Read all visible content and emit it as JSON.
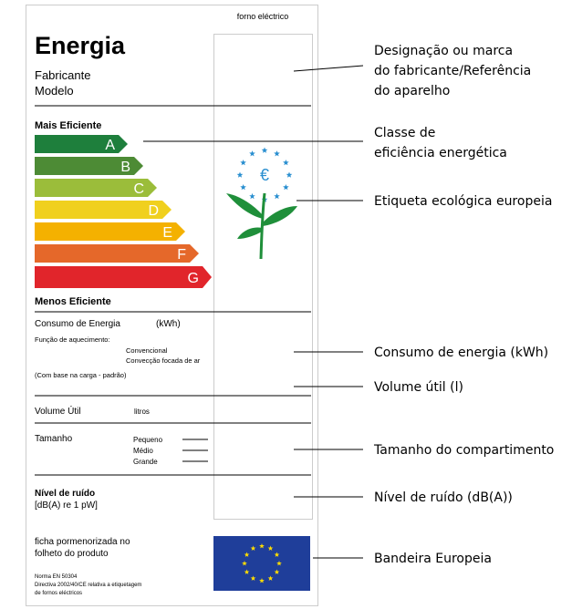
{
  "label": {
    "product_type": "forno eléctrico",
    "title": "Energia",
    "manufacturer": "Fabricante",
    "model": "Modelo",
    "most_efficient": "Mais Eficiente",
    "classes": [
      "A",
      "B",
      "C",
      "D",
      "E",
      "F",
      "G"
    ],
    "least_efficient": "Menos Eficiente",
    "consumption": {
      "title": "Consumo de Energia",
      "unit": "(kWh)",
      "heating_function": "Função de aquecimento:",
      "conventional": "Convencional",
      "forced_air": "Convecção focada de ar",
      "basis": "(Com base na carga - padrão)"
    },
    "volume": {
      "title": "Volume Útil",
      "unit": "litros"
    },
    "size": {
      "title": "Tamanho",
      "options": [
        "Pequeno",
        "Médio",
        "Grande"
      ]
    },
    "noise": {
      "title": "Nível de ruído",
      "unit": "[dB(A) re 1 pW]"
    },
    "details": [
      "ficha pormenorizada no",
      "folheto do produto"
    ],
    "legal": [
      "Norma EN 50304",
      "Directiva 2002/40/CE relativa a etiquetagem",
      "de fornos eléctricos"
    ]
  },
  "annotations": [
    [
      "Designação ou marca",
      "do fabricante/Referência",
      "do aparelho"
    ],
    [
      "Classe de",
      "eficiência energética"
    ],
    [
      "Etiqueta ecológica europeia"
    ],
    [
      "Consumo de energia (kWh)"
    ],
    [
      "Volume útil (l)"
    ],
    [
      "Tamanho do compartimento"
    ],
    [
      "Nível de ruído (dB(A))"
    ],
    [
      "Bandeira Europeia"
    ]
  ]
}
